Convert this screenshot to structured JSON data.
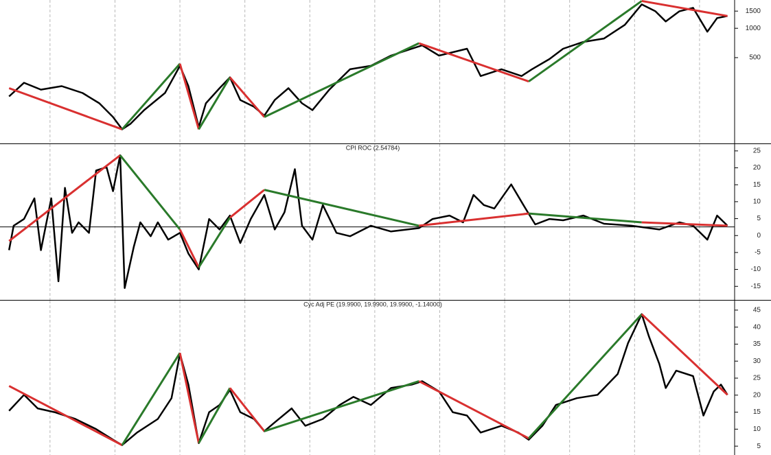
{
  "chart_data": [
    {
      "type": "line",
      "log": true,
      "color": "#000000",
      "xlim": [
        2.3,
        115.4
      ],
      "xticks": [
        10,
        20,
        30,
        40,
        50,
        60,
        70,
        80,
        90,
        100,
        110
      ],
      "ylim": [
        67,
        1950
      ],
      "yticks": [
        500,
        1000,
        1500
      ],
      "x": [
        3.7,
        6.0,
        8.6,
        11.8,
        15.0,
        17.6,
        19.7,
        21.1,
        22.4,
        24.5,
        27.7,
        30.0,
        31.3,
        32.9,
        34.0,
        36.1,
        37.7,
        39.3,
        41.4,
        43.0,
        44.6,
        46.7,
        48.8,
        50.4,
        53.0,
        56.2,
        59.4,
        62.5,
        65.7,
        67.3,
        69.9,
        74.2,
        76.3,
        79.5,
        82.6,
        84.2,
        86.9,
        89.0,
        92.1,
        95.3,
        98.5,
        101.1,
        103.2,
        104.8,
        106.9,
        109.0,
        111.2,
        112.7,
        114.3
      ],
      "values": [
        200,
        276,
        235,
        255,
        217,
        170,
        123,
        92,
        105,
        145,
        217,
        412,
        255,
        97,
        170,
        243,
        314,
        184,
        157,
        127,
        184,
        243,
        170,
        145,
        235,
        380,
        412,
        525,
        617,
        668,
        525,
        617,
        324,
        380,
        324,
        380,
        484,
        617,
        725,
        786,
        1084,
        1757,
        1496,
        1175,
        1496,
        1622,
        923,
        1274,
        1336
      ],
      "segments": [
        {
          "color": "#d93030",
          "x": [
            3.7,
            21.1
          ],
          "values": [
            243,
            92
          ]
        },
        {
          "color": "#2a7a2a",
          "x": [
            21.1,
            30.0
          ],
          "values": [
            92,
            433
          ]
        },
        {
          "color": "#d93030",
          "x": [
            30.0,
            32.9
          ],
          "values": [
            433,
            92
          ]
        },
        {
          "color": "#2a7a2a",
          "x": [
            32.9,
            37.7
          ],
          "values": [
            92,
            314
          ]
        },
        {
          "color": "#d93030",
          "x": [
            37.7,
            43.0
          ],
          "values": [
            314,
            123
          ]
        },
        {
          "color": "#2a7a2a",
          "x": [
            43.0,
            66.8
          ],
          "values": [
            123,
            702
          ]
        },
        {
          "color": "#d93030",
          "x": [
            66.8,
            83.7
          ],
          "values": [
            702,
            285
          ]
        },
        {
          "color": "#2a7a2a",
          "x": [
            83.7,
            101.1
          ],
          "values": [
            285,
            1905
          ]
        },
        {
          "color": "#d93030",
          "x": [
            101.1,
            114.3
          ],
          "values": [
            1905,
            1336
          ]
        }
      ]
    },
    {
      "type": "line",
      "title": "CPI ROC (2.54784)",
      "reference": 2.54784,
      "color": "#000000",
      "xlim": [
        2.3,
        115.4
      ],
      "xticks": [
        10,
        20,
        30,
        40,
        50,
        60,
        70,
        80,
        90,
        100,
        110
      ],
      "ylim": [
        -19,
        27
      ],
      "yticks": [
        -15,
        -10,
        -5,
        0,
        5,
        10,
        15,
        20,
        25
      ],
      "x": [
        3.7,
        4.4,
        6.0,
        7.6,
        8.6,
        10.2,
        11.3,
        12.3,
        13.4,
        14.4,
        16.0,
        17.1,
        18.7,
        19.7,
        20.8,
        21.5,
        22.9,
        23.9,
        25.5,
        26.6,
        28.2,
        30.0,
        31.3,
        32.9,
        34.5,
        36.1,
        37.7,
        39.3,
        40.9,
        43.0,
        44.6,
        46.1,
        47.7,
        48.8,
        50.4,
        52.0,
        54.1,
        56.2,
        59.4,
        62.5,
        66.8,
        68.9,
        71.5,
        73.6,
        75.2,
        76.8,
        78.4,
        81.0,
        83.2,
        84.7,
        86.9,
        89.0,
        92.1,
        95.3,
        99.5,
        103.8,
        106.9,
        109.0,
        111.2,
        112.7,
        114.3
      ],
      "values": [
        -4.3,
        2.9,
        4.9,
        11.0,
        -4.3,
        11.0,
        -13.5,
        14.1,
        0.8,
        3.9,
        0.8,
        19.2,
        20.2,
        13.1,
        23.7,
        -15.5,
        -3.3,
        3.9,
        -0.2,
        3.9,
        -1.2,
        0.8,
        -5.3,
        -10.0,
        4.9,
        1.8,
        5.9,
        -2.2,
        4.9,
        12.0,
        1.8,
        6.9,
        19.6,
        2.9,
        -1.2,
        9.0,
        0.8,
        -0.2,
        2.9,
        1.2,
        2.2,
        4.9,
        5.9,
        3.9,
        12.0,
        9.0,
        8.0,
        15.1,
        8.0,
        3.3,
        4.9,
        4.5,
        5.9,
        3.5,
        2.9,
        1.8,
        3.9,
        2.9,
        -1.2,
        5.9,
        2.9
      ],
      "segments": [
        {
          "color": "#d93030",
          "x": [
            3.7,
            20.8
          ],
          "values": [
            -1.6,
            23.7
          ]
        },
        {
          "color": "#2a7a2a",
          "x": [
            20.8,
            30.0
          ],
          "values": [
            23.7,
            1.8
          ]
        },
        {
          "color": "#d93030",
          "x": [
            30.0,
            32.9
          ],
          "values": [
            1.8,
            -9.4
          ]
        },
        {
          "color": "#2a7a2a",
          "x": [
            32.9,
            37.7
          ],
          "values": [
            -9.4,
            5.3
          ]
        },
        {
          "color": "#d93030",
          "x": [
            37.7,
            43.0
          ],
          "values": [
            5.3,
            13.5
          ]
        },
        {
          "color": "#2a7a2a",
          "x": [
            43.0,
            66.8
          ],
          "values": [
            13.5,
            2.9
          ]
        },
        {
          "color": "#d93030",
          "x": [
            66.8,
            83.7
          ],
          "values": [
            2.9,
            6.5
          ]
        },
        {
          "color": "#2a7a2a",
          "x": [
            83.7,
            101.1
          ],
          "values": [
            6.5,
            3.9
          ]
        },
        {
          "color": "#d93030",
          "x": [
            101.1,
            114.3
          ],
          "values": [
            3.9,
            2.9
          ]
        }
      ]
    },
    {
      "type": "line",
      "title": "Cyc Adj PE (19.9900, 19.9900, 19.9900, -1.14000)",
      "color": "#000000",
      "xlim": [
        2.3,
        115.4
      ],
      "xticks": [
        10,
        20,
        30,
        40,
        50,
        60,
        70,
        80,
        90,
        100,
        110
      ],
      "ylim": [
        2.4,
        47.8
      ],
      "yticks": [
        5,
        10,
        15,
        20,
        25,
        30,
        35,
        40,
        45
      ],
      "x": [
        3.7,
        6.0,
        8.1,
        10.7,
        13.9,
        17.1,
        19.7,
        21.1,
        23.4,
        26.6,
        28.7,
        30.0,
        31.3,
        32.9,
        34.5,
        36.1,
        37.7,
        39.3,
        41.4,
        43.0,
        44.6,
        47.2,
        49.3,
        52.0,
        54.6,
        56.7,
        59.4,
        62.5,
        65.7,
        67.3,
        69.9,
        72.0,
        74.2,
        76.3,
        79.5,
        82.1,
        83.7,
        85.8,
        87.9,
        91.1,
        94.3,
        97.4,
        99.0,
        101.1,
        102.2,
        103.8,
        104.8,
        106.4,
        109.0,
        110.6,
        112.2,
        113.3,
        114.3
      ],
      "values": [
        15.4,
        20.1,
        16.1,
        15.0,
        13.0,
        10.0,
        6.9,
        5.3,
        9.0,
        13.0,
        19.1,
        32.2,
        23.1,
        5.9,
        15.0,
        17.1,
        21.5,
        15.0,
        13.0,
        9.4,
        12.0,
        16.1,
        11.0,
        13.0,
        17.1,
        19.5,
        17.1,
        22.1,
        23.1,
        24.1,
        21.1,
        15.0,
        14.0,
        9.0,
        11.0,
        9.0,
        6.9,
        11.0,
        17.1,
        19.1,
        20.1,
        26.2,
        35.3,
        43.8,
        37.3,
        29.2,
        22.1,
        27.2,
        25.6,
        14.0,
        21.1,
        23.1,
        20.1
      ],
      "segments": [
        {
          "color": "#d93030",
          "x": [
            3.7,
            21.1
          ],
          "values": [
            22.7,
            5.3
          ]
        },
        {
          "color": "#2a7a2a",
          "x": [
            21.1,
            30.0
          ],
          "values": [
            5.3,
            32.4
          ]
        },
        {
          "color": "#d93030",
          "x": [
            30.0,
            32.9
          ],
          "values": [
            32.4,
            5.9
          ]
        },
        {
          "color": "#2a7a2a",
          "x": [
            32.9,
            37.7
          ],
          "values": [
            5.9,
            22.1
          ]
        },
        {
          "color": "#d93030",
          "x": [
            37.7,
            43.0
          ],
          "values": [
            22.1,
            9.4
          ]
        },
        {
          "color": "#2a7a2a",
          "x": [
            43.0,
            66.8
          ],
          "values": [
            9.4,
            24.1
          ]
        },
        {
          "color": "#d93030",
          "x": [
            66.8,
            83.7
          ],
          "values": [
            24.1,
            7.3
          ]
        },
        {
          "color": "#2a7a2a",
          "x": [
            83.7,
            101.1
          ],
          "values": [
            7.3,
            43.8
          ]
        },
        {
          "color": "#d93030",
          "x": [
            101.1,
            114.3
          ],
          "values": [
            43.8,
            20.1
          ]
        }
      ]
    }
  ]
}
